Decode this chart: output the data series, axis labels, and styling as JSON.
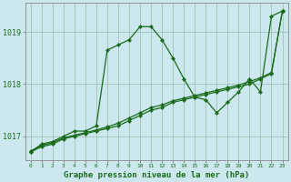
{
  "title": "Graphe pression niveau de la mer (hPa)",
  "background_color": "#cce8ee",
  "line_color": "#1a6b1a",
  "grid_color": "#99bbaa",
  "xlim": [
    -0.5,
    23.5
  ],
  "ylim": [
    1016.55,
    1019.55
  ],
  "yticks": [
    1017,
    1018,
    1019
  ],
  "xticks": [
    0,
    1,
    2,
    3,
    4,
    5,
    6,
    7,
    8,
    9,
    10,
    11,
    12,
    13,
    14,
    15,
    16,
    17,
    18,
    19,
    20,
    21,
    22,
    23
  ],
  "figwidth": 3.2,
  "figheight": 2.0,
  "dpi": 100,
  "series": [
    {
      "x": [
        0,
        1,
        2,
        3,
        4,
        5,
        6,
        7,
        8,
        9,
        10,
        11,
        12,
        13,
        14,
        15,
        16,
        17,
        18,
        19,
        20,
        21,
        22,
        23
      ],
      "y": [
        1016.7,
        1016.85,
        1016.9,
        1017.0,
        1017.1,
        1017.1,
        1017.2,
        1018.65,
        1018.75,
        1018.85,
        1019.1,
        1019.1,
        1018.85,
        1018.5,
        1018.1,
        1017.75,
        1017.7,
        1017.45,
        1017.65,
        1017.85,
        1018.1,
        1017.85,
        1019.3,
        1019.4
      ],
      "marker": "D",
      "markersize": 2.2,
      "linewidth": 0.9
    },
    {
      "x": [
        0,
        1,
        2,
        3,
        4,
        5,
        6,
        7,
        8,
        9,
        10,
        11,
        12,
        13,
        14,
        15,
        16,
        17,
        18,
        19,
        20,
        21,
        22,
        23
      ],
      "y": [
        1016.7,
        1016.8,
        1016.85,
        1016.95,
        1017.0,
        1017.05,
        1017.1,
        1017.15,
        1017.2,
        1017.3,
        1017.4,
        1017.5,
        1017.55,
        1017.65,
        1017.7,
        1017.75,
        1017.8,
        1017.85,
        1017.9,
        1017.95,
        1018.0,
        1018.1,
        1018.2,
        1019.4
      ],
      "marker": "D",
      "markersize": 2.2,
      "linewidth": 0.9
    },
    {
      "x": [
        0,
        1,
        2,
        3,
        4,
        5,
        6,
        7,
        8,
        9,
        10,
        11,
        12,
        13,
        14,
        15,
        16,
        17,
        18,
        19,
        20,
        21,
        22,
        23
      ],
      "y": [
        1016.72,
        1016.82,
        1016.88,
        1016.97,
        1017.02,
        1017.07,
        1017.12,
        1017.18,
        1017.25,
        1017.35,
        1017.45,
        1017.55,
        1017.6,
        1017.68,
        1017.73,
        1017.78,
        1017.83,
        1017.88,
        1017.93,
        1017.98,
        1018.05,
        1018.12,
        1018.22,
        1019.4
      ],
      "marker": "D",
      "markersize": 2.2,
      "linewidth": 0.9
    }
  ]
}
